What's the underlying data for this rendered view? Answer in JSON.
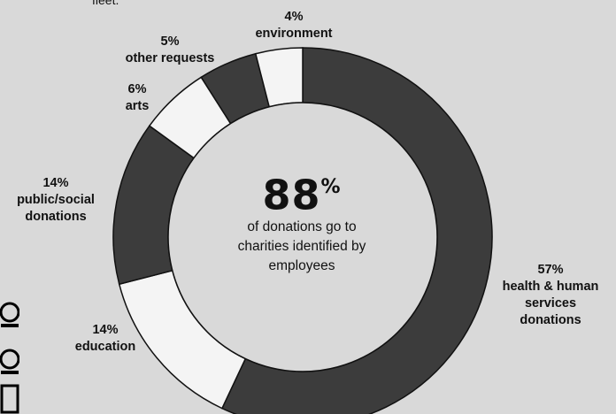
{
  "header": {
    "partial_text": "fleet."
  },
  "center": {
    "big_value": "88",
    "big_unit": "%",
    "lines": [
      "of donations go to",
      "charities identified by",
      "employees"
    ]
  },
  "colors": {
    "background": "#d9d9d9",
    "dark_segment": "#3c3c3c",
    "light_segment": "#f4f4f4",
    "stroke": "#111111"
  },
  "chart_data": {
    "type": "pie",
    "donut": true,
    "slices": [
      {
        "label_pct": "57%",
        "label_lines": [
          "health & human",
          "services",
          "donations"
        ],
        "value": 57,
        "color": "#3c3c3c"
      },
      {
        "label_pct": "14%",
        "label_lines": [
          "education"
        ],
        "value": 14,
        "color": "#f4f4f4"
      },
      {
        "label_pct": "14%",
        "label_lines": [
          "public/social",
          "donations"
        ],
        "value": 14,
        "color": "#3c3c3c"
      },
      {
        "label_pct": "6%",
        "label_lines": [
          "arts"
        ],
        "value": 6,
        "color": "#f4f4f4"
      },
      {
        "label_pct": "5%",
        "label_lines": [
          "other requests"
        ],
        "value": 5,
        "color": "#3c3c3c"
      },
      {
        "label_pct": "4%",
        "label_lines": [
          "environment"
        ],
        "value": 4,
        "color": "#f4f4f4"
      }
    ]
  }
}
